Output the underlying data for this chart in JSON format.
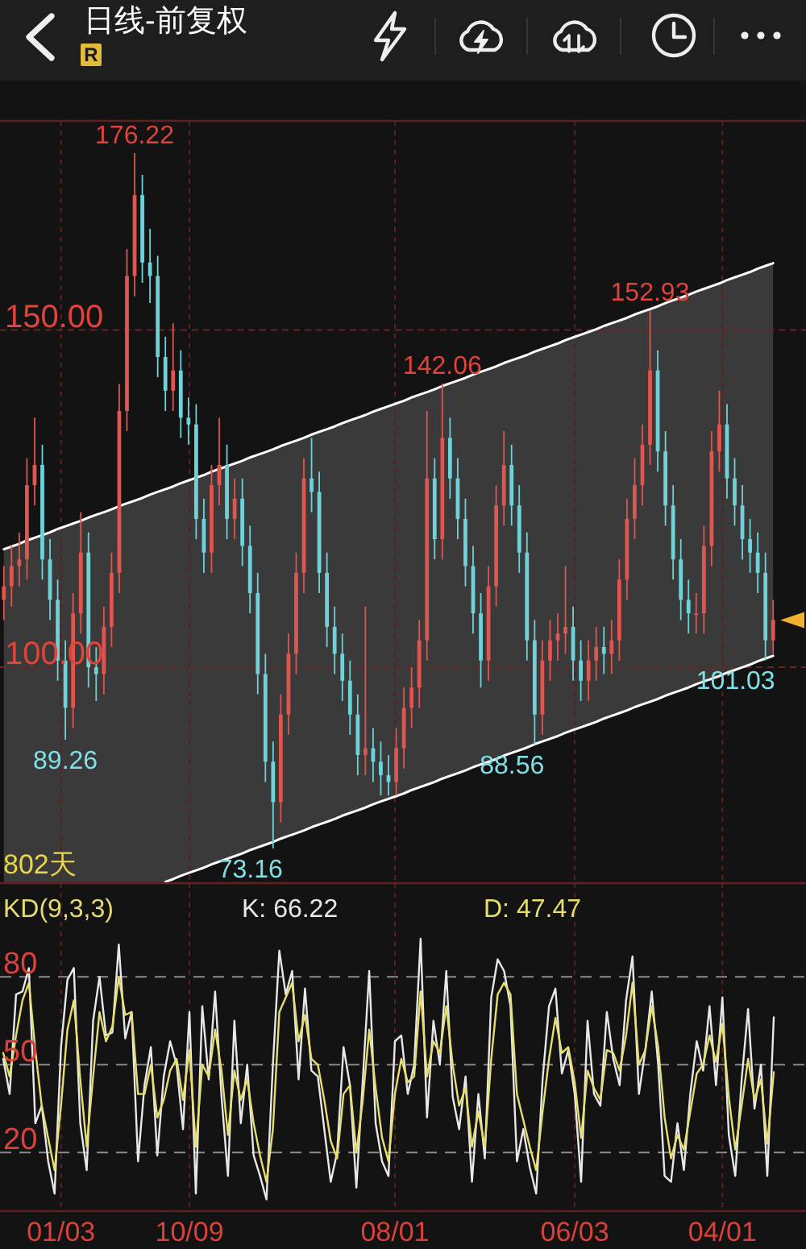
{
  "chart_data": [
    {
      "type": "candlestick",
      "title": "日线-前复权",
      "subtitle": "R",
      "categories": [
        null,
        null,
        null,
        null,
        null,
        null,
        null,
        null,
        null,
        null,
        null,
        null,
        null,
        null,
        null,
        null,
        null,
        null,
        null,
        null,
        null,
        null,
        null,
        null,
        null,
        null,
        null,
        null,
        null,
        null,
        null,
        null,
        null,
        null,
        null,
        null,
        null,
        null,
        null,
        null,
        null,
        null,
        null,
        null,
        null,
        null,
        null,
        null,
        null,
        null,
        null,
        null,
        null,
        null,
        null,
        null,
        null,
        null,
        null,
        null,
        null,
        null,
        null,
        null,
        null,
        null,
        null,
        null,
        null,
        null,
        null,
        null,
        null,
        null,
        null,
        null,
        null,
        null,
        null,
        null,
        null,
        null,
        null,
        null,
        null,
        null,
        null,
        null,
        null,
        null,
        null,
        null,
        null,
        null,
        null,
        null,
        null,
        null,
        null,
        null,
        null
      ],
      "ylim": [
        68,
        181
      ],
      "yticks": [
        {
          "value": 100,
          "label": "100.00"
        },
        {
          "value": 150,
          "label": "150.00"
        }
      ],
      "tick_labels": "y",
      "grid": true,
      "series": [
        {
          "ohlc": [
            [
              110,
              115,
              107,
              112
            ],
            [
              112,
              118,
              109,
              115
            ],
            [
              115,
              120,
              112,
              116
            ],
            [
              116,
              131,
              113,
              127
            ],
            [
              127,
              137,
              124,
              130
            ],
            [
              130,
              133,
              113,
              116
            ],
            [
              116,
              119,
              107,
              110
            ],
            [
              110,
              113,
              98,
              101
            ],
            [
              101,
              104,
              89.26,
              94
            ],
            [
              94,
              111,
              91,
              108
            ],
            [
              108,
              123,
              105,
              117
            ],
            [
              117,
              120,
              97,
              100
            ],
            [
              100,
              103,
              95,
              99
            ],
            [
              99,
              109,
              96,
              106
            ],
            [
              106,
              117,
              103,
              114
            ],
            [
              114,
              142,
              111,
              138
            ],
            [
              138,
              162,
              135,
              158
            ],
            [
              158,
              176.22,
              155,
              170
            ],
            [
              170,
              173,
              157,
              160
            ],
            [
              160,
              165,
              154,
              158
            ],
            [
              158,
              161,
              143,
              146
            ],
            [
              146,
              149,
              138,
              141
            ],
            [
              141,
              151,
              138,
              144
            ],
            [
              144,
              147,
              134,
              137
            ],
            [
              137,
              140,
              133,
              136
            ],
            [
              136,
              139,
              119,
              122
            ],
            [
              122,
              125,
              114,
              117
            ],
            [
              117,
              130,
              114,
              127
            ],
            [
              127,
              137,
              124,
              130
            ],
            [
              130,
              133,
              119,
              122
            ],
            [
              122,
              128,
              119,
              125
            ],
            [
              125,
              128,
              115,
              118
            ],
            [
              118,
              121,
              108,
              111
            ],
            [
              111,
              114,
              96,
              99
            ],
            [
              99,
              102,
              83,
              86
            ],
            [
              86,
              89,
              73.16,
              80
            ],
            [
              80,
              96,
              77,
              93
            ],
            [
              93,
              105,
              90,
              102
            ],
            [
              102,
              117,
              99,
              114
            ],
            [
              114,
              131,
              111,
              128
            ],
            [
              128,
              134,
              123,
              126
            ],
            [
              126,
              129,
              111,
              114
            ],
            [
              114,
              117,
              103,
              106
            ],
            [
              106,
              109,
              99,
              102
            ],
            [
              102,
              105,
              95,
              98
            ],
            [
              98,
              101,
              90,
              93
            ],
            [
              93,
              96,
              84,
              87
            ],
            [
              87,
              109,
              84,
              88
            ],
            [
              88,
              91,
              83,
              86
            ],
            [
              86,
              89,
              81,
              84
            ],
            [
              84,
              87,
              81,
              83
            ],
            [
              83,
              91,
              81,
              88
            ],
            [
              88,
              97,
              85,
              94
            ],
            [
              94,
              100,
              91,
              97
            ],
            [
              97,
              107,
              94,
              104
            ],
            [
              104,
              138,
              101,
              128
            ],
            [
              128,
              131,
              116,
              119
            ],
            [
              119,
              142.06,
              116,
              134
            ],
            [
              134,
              137,
              125,
              128
            ],
            [
              128,
              131,
              119,
              122
            ],
            [
              122,
              125,
              112,
              115
            ],
            [
              115,
              118,
              105,
              108
            ],
            [
              108,
              111,
              97,
              101
            ],
            [
              101,
              115,
              98,
              112
            ],
            [
              112,
              127,
              109,
              124
            ],
            [
              124,
              135,
              121,
              130
            ],
            [
              130,
              133,
              121,
              124
            ],
            [
              124,
              127,
              114,
              117
            ],
            [
              117,
              120,
              101,
              104
            ],
            [
              104,
              107,
              88.56,
              93
            ],
            [
              93,
              104,
              90,
              101
            ],
            [
              101,
              107,
              98,
              104
            ],
            [
              104,
              108,
              101,
              105
            ],
            [
              105,
              115,
              102,
              106
            ],
            [
              106,
              109,
              98,
              101
            ],
            [
              101,
              104,
              95,
              98
            ],
            [
              98,
              104,
              95,
              101
            ],
            [
              101,
              106,
              98,
              103
            ],
            [
              103,
              106,
              99,
              102
            ],
            [
              102,
              107,
              99,
              104
            ],
            [
              104,
              116,
              101,
              113
            ],
            [
              113,
              125,
              110,
              122
            ],
            [
              122,
              131,
              119,
              127
            ],
            [
              127,
              136,
              124,
              133
            ],
            [
              133,
              152.93,
              130,
              144
            ],
            [
              144,
              147,
              129,
              132
            ],
            [
              132,
              135,
              121,
              124
            ],
            [
              124,
              127,
              113,
              116
            ],
            [
              116,
              119,
              107,
              110
            ],
            [
              110,
              113,
              105,
              108
            ],
            [
              108,
              111,
              105,
              108
            ],
            [
              108,
              121,
              105,
              118
            ],
            [
              118,
              135,
              115,
              132
            ],
            [
              132,
              141,
              129,
              136
            ],
            [
              136,
              139,
              125,
              128
            ],
            [
              128,
              131,
              121,
              124
            ],
            [
              124,
              127,
              116,
              119
            ],
            [
              119,
              122,
              114,
              117
            ],
            [
              117,
              120,
              111,
              114
            ],
            [
              114,
              117,
              101.03,
              104
            ],
            [
              104,
              110,
              102,
              107
            ]
          ],
          "colors": [
            "#df5550",
            "#df5550",
            "#df5550",
            "#df5550",
            "#df5550",
            "#6fd2d9",
            "#6fd2d9",
            "#6fd2d9",
            "#6fd2d9",
            "#df5550",
            "#df5550",
            "#6fd2d9",
            "#6fd2d9",
            "#df5550",
            "#df5550",
            "#df5550",
            "#df5550",
            "#df5550",
            "#6fd2d9",
            "#6fd2d9",
            "#6fd2d9",
            "#6fd2d9",
            "#df5550",
            "#6fd2d9",
            "#6fd2d9",
            "#6fd2d9",
            "#6fd2d9",
            "#df5550",
            "#df5550",
            "#6fd2d9",
            "#df5550",
            "#6fd2d9",
            "#6fd2d9",
            "#6fd2d9",
            "#6fd2d9",
            "#6fd2d9",
            "#df5550",
            "#df5550",
            "#df5550",
            "#df5550",
            "#6fd2d9",
            "#6fd2d9",
            "#6fd2d9",
            "#6fd2d9",
            "#6fd2d9",
            "#6fd2d9",
            "#6fd2d9",
            "#df5550",
            "#6fd2d9",
            "#6fd2d9",
            "#6fd2d9",
            "#df5550",
            "#df5550",
            "#df5550",
            "#df5550",
            "#df5550",
            "#6fd2d9",
            "#df5550",
            "#6fd2d9",
            "#6fd2d9",
            "#6fd2d9",
            "#6fd2d9",
            "#6fd2d9",
            "#df5550",
            "#df5550",
            "#df5550",
            "#6fd2d9",
            "#6fd2d9",
            "#6fd2d9",
            "#6fd2d9",
            "#df5550",
            "#df5550",
            "#df5550",
            "#df5550",
            "#6fd2d9",
            "#6fd2d9",
            "#df5550",
            "#df5550",
            "#6fd2d9",
            "#df5550",
            "#df5550",
            "#df5550",
            "#df5550",
            "#df5550",
            "#df5550",
            "#6fd2d9",
            "#6fd2d9",
            "#6fd2d9",
            "#6fd2d9",
            "#6fd2d9",
            "#df5550",
            "#df5550",
            "#df5550",
            "#df5550",
            "#6fd2d9",
            "#6fd2d9",
            "#6fd2d9",
            "#6fd2d9",
            "#6fd2d9",
            "#6fd2d9",
            "#df5550"
          ]
        },
        {
          "type": "line",
          "color": "#ffffff",
          "values": [
            117.5,
            117.9,
            118.3,
            118.8,
            119.2,
            119.6,
            120.0,
            120.5,
            120.9,
            121.3,
            121.7,
            122.2,
            122.6,
            123.0,
            123.4,
            123.9,
            124.3,
            124.7,
            125.1,
            125.6,
            126.0,
            126.4,
            126.8,
            127.3,
            127.7,
            128.1,
            128.5,
            129.0,
            129.4,
            129.8,
            130.2,
            130.6,
            131.1,
            131.5,
            131.9,
            132.3,
            132.8,
            133.2,
            133.6,
            134.0,
            134.5,
            134.9,
            135.3,
            135.7,
            136.2,
            136.6,
            137.0,
            137.4,
            137.9,
            138.3,
            138.7,
            139.1,
            139.5,
            140.0,
            140.4,
            140.8,
            141.2,
            141.7,
            142.1,
            142.5,
            142.9,
            143.4,
            143.8,
            144.2,
            144.6,
            145.1,
            145.5,
            145.9,
            146.3,
            146.8,
            147.2,
            147.6,
            148.0,
            148.5,
            148.9,
            149.3,
            149.7,
            150.1,
            150.6,
            151.0,
            151.4,
            151.8,
            152.3,
            152.7,
            153.1,
            153.5,
            154.0,
            154.4,
            154.8,
            155.2,
            155.7,
            156.1,
            156.5,
            156.9,
            157.4,
            157.8,
            158.2,
            158.6,
            159.1,
            159.5,
            159.9
          ],
          "lower": [
            68,
            68,
            68,
            68,
            68,
            68,
            68,
            68,
            68,
            68,
            68,
            68,
            68,
            68,
            68,
            68,
            68,
            68,
            68,
            68,
            68,
            68.2,
            68.6,
            69.1,
            69.5,
            69.9,
            70.3,
            70.8,
            71.2,
            71.6,
            72.0,
            72.4,
            72.9,
            73.3,
            73.7,
            74.1,
            74.6,
            75.0,
            75.4,
            75.8,
            76.3,
            76.7,
            77.1,
            77.5,
            78.0,
            78.4,
            78.8,
            79.2,
            79.7,
            80.1,
            80.5,
            80.9,
            81.3,
            81.8,
            82.2,
            82.6,
            83.0,
            83.5,
            83.9,
            84.3,
            84.7,
            85.2,
            85.6,
            86.0,
            86.4,
            86.9,
            87.3,
            87.7,
            88.1,
            88.6,
            89.0,
            89.4,
            89.8,
            90.3,
            90.7,
            91.1,
            91.5,
            91.9,
            92.4,
            92.8,
            93.2,
            93.6,
            94.1,
            94.5,
            94.9,
            95.3,
            95.8,
            96.2,
            96.6,
            97.0,
            97.5,
            97.9,
            98.3,
            98.7,
            99.2,
            99.6,
            100.0,
            100.4,
            100.9,
            101.3,
            101.7
          ],
          "upper": [
            117.5,
            117.9,
            118.3,
            118.8,
            119.2,
            119.6,
            120.0,
            120.5,
            120.9,
            121.3,
            121.7,
            122.2,
            122.6,
            123.0,
            123.4,
            123.9,
            124.3,
            124.7,
            125.1,
            125.6,
            126.0,
            126.4,
            126.8,
            127.3,
            127.7,
            128.1,
            128.5,
            129.0,
            129.4,
            129.8,
            130.2,
            130.6,
            131.1,
            131.5,
            131.9,
            132.3,
            132.8,
            133.2,
            133.6,
            134.0,
            134.5,
            134.9,
            135.3,
            135.7,
            136.2,
            136.6,
            137.0,
            137.4,
            137.9,
            138.3,
            138.7,
            139.1,
            139.5,
            140.0,
            140.4,
            140.8,
            141.2,
            141.7,
            142.1,
            142.5,
            142.9,
            143.4,
            143.8,
            144.2,
            144.6,
            145.1,
            145.5,
            145.9,
            146.3,
            146.8,
            147.2,
            147.6,
            148.0,
            148.5,
            148.9,
            149.3,
            149.7,
            150.1,
            150.6,
            151.0,
            151.4,
            151.8,
            152.3,
            152.7,
            153.1,
            153.5,
            154.0,
            154.4,
            154.8,
            155.2,
            155.7,
            156.1,
            156.5,
            156.9,
            157.4,
            157.8,
            158.2,
            158.6,
            159.1,
            159.5,
            159.9
          ]
        },
        {
          "type": "line",
          "color": "#ffffff",
          "values": [
            null,
            null,
            null,
            null,
            null,
            null,
            null,
            null,
            null,
            null,
            null,
            null,
            null,
            null,
            null,
            null,
            null,
            null,
            null,
            null,
            null,
            68.2,
            68.6,
            69.1,
            69.5,
            69.9,
            70.3,
            70.8,
            71.2,
            71.6,
            72.0,
            72.4,
            72.9,
            73.3,
            73.7,
            74.1,
            74.6,
            75.0,
            75.4,
            75.8,
            76.3,
            76.7,
            77.1,
            77.5,
            78.0,
            78.4,
            78.8,
            79.2,
            79.7,
            80.1,
            80.5,
            80.9,
            81.3,
            81.8,
            82.2,
            82.6,
            83.0,
            83.5,
            83.9,
            84.3,
            84.7,
            85.2,
            85.6,
            86.0,
            86.4,
            86.9,
            87.3,
            87.7,
            88.1,
            88.6,
            89.0,
            89.4,
            89.8,
            90.3,
            90.7,
            91.1,
            91.5,
            91.9,
            92.4,
            92.8,
            93.2,
            93.6,
            94.1,
            94.5,
            94.9,
            95.3,
            95.8,
            96.2,
            96.6,
            97.0,
            97.5,
            97.9,
            98.3,
            98.7,
            99.2,
            99.6,
            100.0,
            100.4,
            100.9,
            101.3,
            101.7
          ]
        }
      ],
      "annotations": [
        {
          "text": "176.22",
          "y": 176.22
        },
        {
          "text": "142.06",
          "y": 142.06
        },
        {
          "text": "152.93",
          "y": 152.93
        },
        {
          "text": "89.26",
          "y": 89.26
        },
        {
          "text": "73.16",
          "y": 73.16
        },
        {
          "text": "88.56",
          "y": 88.56
        },
        {
          "text": "101.03",
          "y": 101.03
        },
        "802天"
      ]
    },
    {
      "type": "line",
      "title": "KD(9,3,3)",
      "categories": [
        null,
        null,
        null,
        null,
        null,
        null,
        null,
        null,
        null,
        "01/03",
        null,
        null,
        null,
        null,
        null,
        null,
        null,
        null,
        null,
        null,
        null,
        null,
        null,
        null,
        null,
        null,
        null,
        null,
        null,
        "10/09",
        null,
        null,
        null,
        null,
        null,
        null,
        null,
        null,
        null,
        null,
        null,
        null,
        null,
        null,
        null,
        null,
        null,
        null,
        null,
        null,
        null,
        null,
        null,
        null,
        null,
        null,
        null,
        null,
        null,
        null,
        null,
        "08/01",
        null,
        null,
        null,
        null,
        null,
        null,
        null,
        null,
        null,
        null,
        null,
        null,
        null,
        null,
        null,
        null,
        null,
        null,
        null,
        null,
        null,
        null,
        null,
        null,
        null,
        null,
        null,
        "06/03",
        null,
        null,
        null,
        null,
        null,
        null,
        null,
        null,
        null,
        null,
        null,
        null,
        null,
        null,
        null,
        null,
        null,
        null,
        null,
        null,
        null,
        null,
        "04/01",
        null,
        null,
        null,
        null,
        null,
        null,
        null,
        null
      ],
      "ylim": [
        0,
        112
      ],
      "yticks": [
        20,
        50,
        80
      ],
      "grid": true,
      "legend": "top",
      "series": [
        {
          "name": "K: 66.22",
          "color": "#e8e8e8",
          "values": [
            52,
            40,
            74,
            75,
            83,
            30,
            36,
            17,
            6,
            56,
            79,
            83,
            30,
            14,
            65,
            80,
            60,
            61,
            91,
            59,
            68,
            17,
            43,
            56,
            19,
            46,
            58,
            50,
            28,
            68,
            6,
            70,
            45,
            75,
            39,
            12,
            65,
            30,
            50,
            19,
            12,
            4,
            50,
            89,
            74,
            82,
            45,
            76,
            48,
            46,
            28,
            10,
            20,
            56,
            43,
            8,
            45,
            82,
            30,
            17,
            12,
            58,
            60,
            40,
            50,
            93,
            32,
            65,
            50,
            82,
            39,
            28,
            46,
            10,
            40,
            18,
            73,
            86,
            82,
            70,
            17,
            28,
            15,
            6,
            45,
            70,
            76,
            47,
            55,
            40,
            10,
            65,
            40,
            36,
            68,
            52,
            43,
            72,
            87,
            40,
            55,
            75,
            50,
            12,
            10,
            30,
            14,
            40,
            58,
            48,
            70,
            43,
            73,
            26,
            12,
            45,
            69,
            35,
            50,
            12,
            66.22
          ]
        },
        {
          "name": "D: 47.47",
          "color": "#e6df6e",
          "values": [
            54,
            46,
            60,
            72,
            78,
            55,
            36,
            25,
            14,
            36,
            62,
            72,
            45,
            22,
            46,
            68,
            58,
            63,
            80,
            67,
            68,
            40,
            40,
            50,
            32,
            38,
            48,
            52,
            38,
            55,
            22,
            50,
            46,
            62,
            48,
            26,
            48,
            38,
            45,
            30,
            19,
            10,
            28,
            68,
            73,
            78,
            58,
            67,
            52,
            50,
            38,
            24,
            18,
            40,
            43,
            20,
            38,
            62,
            42,
            25,
            17,
            40,
            52,
            44,
            46,
            75,
            46,
            58,
            54,
            70,
            50,
            36,
            42,
            22,
            34,
            22,
            52,
            74,
            78,
            74,
            40,
            31,
            22,
            14,
            34,
            52,
            66,
            54,
            56,
            44,
            25,
            48,
            42,
            38,
            55,
            54,
            48,
            60,
            78,
            50,
            55,
            70,
            56,
            32,
            18,
            26,
            21,
            34,
            47,
            50,
            60,
            51,
            64,
            39,
            21,
            36,
            52,
            38,
            45,
            23,
            47.47
          ]
        }
      ]
    }
  ]
}
